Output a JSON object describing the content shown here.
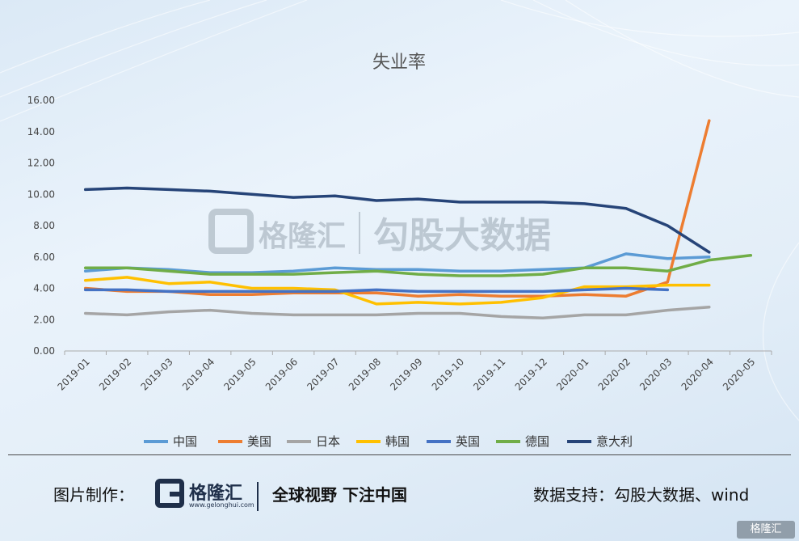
{
  "chart_data": {
    "type": "line",
    "title": "失业率",
    "categories": [
      "2019-01",
      "2019-02",
      "2019-03",
      "2019-04",
      "2019-05",
      "2019-06",
      "2019-07",
      "2019-08",
      "2019-09",
      "2019-10",
      "2019-11",
      "2019-12",
      "2020-01",
      "2020-02",
      "2020-03",
      "2020-04",
      "2020-05"
    ],
    "y_ticks": [
      "0.00",
      "2.00",
      "4.00",
      "6.00",
      "8.00",
      "10.00",
      "12.00",
      "14.00",
      "16.00"
    ],
    "ylim": [
      0,
      16
    ],
    "grid": false,
    "legend_position": "bottom",
    "series": [
      {
        "name": "中国",
        "color": "#5b9bd5",
        "values": [
          5.1,
          5.3,
          5.2,
          5.0,
          5.0,
          5.1,
          5.3,
          5.2,
          5.2,
          5.1,
          5.1,
          5.2,
          5.3,
          6.2,
          5.9,
          6.0,
          null
        ]
      },
      {
        "name": "美国",
        "color": "#ed7d31",
        "values": [
          4.0,
          3.8,
          3.8,
          3.6,
          3.6,
          3.7,
          3.7,
          3.7,
          3.5,
          3.6,
          3.5,
          3.5,
          3.6,
          3.5,
          4.4,
          14.7,
          null
        ]
      },
      {
        "name": "日本",
        "color": "#a5a5a5",
        "values": [
          2.4,
          2.3,
          2.5,
          2.6,
          2.4,
          2.3,
          2.3,
          2.3,
          2.4,
          2.4,
          2.2,
          2.1,
          2.3,
          2.3,
          2.6,
          2.8,
          null
        ]
      },
      {
        "name": "韩国",
        "color": "#ffc000",
        "values": [
          4.5,
          4.7,
          4.3,
          4.4,
          4.0,
          4.0,
          3.9,
          3.0,
          3.1,
          3.0,
          3.1,
          3.4,
          4.1,
          4.1,
          4.2,
          4.2,
          null
        ]
      },
      {
        "name": "英国",
        "color": "#4472c4",
        "values": [
          3.9,
          3.9,
          3.8,
          3.8,
          3.8,
          3.8,
          3.8,
          3.9,
          3.8,
          3.8,
          3.8,
          3.8,
          3.9,
          4.0,
          3.9,
          null,
          null
        ]
      },
      {
        "name": "德国",
        "color": "#70ad47",
        "values": [
          5.3,
          5.3,
          5.1,
          4.9,
          4.9,
          4.9,
          5.0,
          5.1,
          4.9,
          4.8,
          4.8,
          4.9,
          5.3,
          5.3,
          5.1,
          5.8,
          6.1
        ]
      },
      {
        "name": "意大利",
        "color": "#264478",
        "values": [
          10.3,
          10.4,
          10.3,
          10.2,
          10.0,
          9.8,
          9.9,
          9.6,
          9.7,
          9.5,
          9.5,
          9.5,
          9.4,
          9.1,
          8.0,
          6.3,
          null
        ]
      }
    ]
  },
  "watermark": {
    "brand": "格隆汇",
    "product": "勾股大数据"
  },
  "footer": {
    "made_by": "图片制作：",
    "logo_name": "格隆汇",
    "logo_url": "www.gelonghui.com",
    "slogan": "全球视野 下注中国",
    "data_source": "数据支持：勾股大数据、wind"
  },
  "corner_mark": "格隆汇"
}
